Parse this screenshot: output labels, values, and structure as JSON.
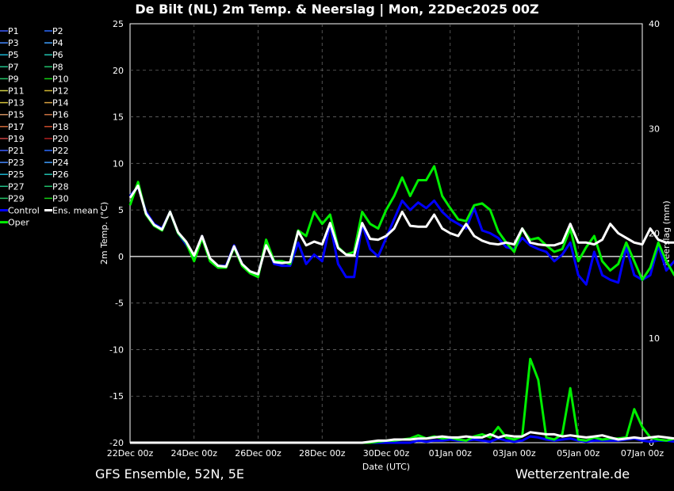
{
  "header": {
    "title": "De Bilt  (NL)  2m Temp. & Neerslag | Mon, 22Dec2025 00Z"
  },
  "footer": {
    "model": "GFS Ensemble, 52N, 5E",
    "site": "Wetterzentrale.de"
  },
  "chart_data": {
    "type": "line",
    "title": "De Bilt  (NL)  2m Temp. & Neerslag | Mon, 22Dec2025 00Z",
    "xlabel": "Date (UTC)",
    "ylabel_left": "2m Temp. (°C)",
    "ylabel_right": "Neerslag (mm)",
    "ylim_left": [
      -20,
      25
    ],
    "ylim_right": [
      0,
      40
    ],
    "xlim_hours": [
      0,
      384
    ],
    "step_hours": 6,
    "x_ticks": [
      "22Dec 00z",
      "24Dec 00z",
      "26Dec 00z",
      "28Dec 00z",
      "30Dec 00z",
      "01Jan 00z",
      "03Jan 00z",
      "05Jan 00z",
      "07Jan 00z"
    ],
    "y_ticks_left": [
      25,
      20,
      15,
      10,
      5,
      0,
      -5,
      -10,
      -15,
      -20
    ],
    "y_ticks_right": [
      40,
      30,
      20,
      10,
      0
    ],
    "grid": true,
    "legend_position": "left",
    "legend": [
      "P1",
      "P2",
      "P3",
      "P4",
      "P5",
      "P6",
      "P7",
      "P8",
      "P9",
      "P10",
      "P11",
      "P12",
      "P13",
      "P14",
      "P15",
      "P16",
      "P17",
      "P18",
      "P19",
      "P20",
      "P21",
      "P22",
      "P23",
      "P24",
      "P25",
      "P26",
      "P27",
      "P28",
      "P29",
      "P30",
      "Control",
      "Ens. mean",
      "Oper"
    ],
    "legend_colors": [
      "#3c5cff",
      "#2a6aff",
      "#4488ff",
      "#3f9fff",
      "#19b3d0",
      "#22c2b0",
      "#22c28a",
      "#1fbf6a",
      "#22c266",
      "#14d014",
      "#cfcf45",
      "#cfb530",
      "#d6c23a",
      "#d8a040",
      "#d09060",
      "#c87040",
      "#d06a3a",
      "#c84a2a",
      "#c84040",
      "#b02020",
      "#3c5cff",
      "#2a6aff",
      "#4488ff",
      "#3f9fff",
      "#19b3d0",
      "#22c2b0",
      "#22c28a",
      "#1fbf6a",
      "#22c266",
      "#14d014",
      "#0000ff",
      "#ffffff",
      "#00ee00"
    ],
    "temp_series": [
      {
        "name": "Oper",
        "color": "#00ee00",
        "width": 3,
        "values": [
          5.5,
          8,
          4.5,
          3.3,
          2.8,
          4.8,
          2.5,
          1.5,
          -0.5,
          2.0,
          -0.5,
          -1.2,
          -1.2,
          1.0,
          -1.0,
          -1.8,
          -2.2,
          1.8,
          -0.5,
          -0.5,
          -0.8,
          2.8,
          2.2,
          4.8,
          3.5,
          4.5,
          1.0,
          0.2,
          0.5,
          4.8,
          3.5,
          3.0,
          5.0,
          6.5,
          8.5,
          6.5,
          8.2,
          8.2,
          9.7,
          6.5,
          5.2,
          4.0,
          3.8,
          5.5,
          5.7,
          5.0,
          2.7,
          1.5,
          0.5,
          3.0,
          1.8,
          2.0,
          1.2,
          0.5,
          0.8,
          3.0,
          -0.5,
          1.0,
          2.2,
          -0.5,
          -1.5,
          -0.8,
          1.5,
          -0.5,
          -2.5,
          -1.2,
          1.5,
          -0.5,
          -2.0,
          -1.2,
          1.5,
          -1.8,
          -0.5
        ]
      },
      {
        "name": "Control",
        "color": "#0000ff",
        "width": 3,
        "values": [
          6.5,
          7.5,
          4.8,
          3.5,
          3.0,
          4.8,
          2.5,
          1.3,
          0.0,
          2.2,
          -0.3,
          -1.0,
          -1.0,
          1.2,
          -0.8,
          -1.6,
          -2.0,
          1.5,
          -0.8,
          -1.0,
          -1.0,
          1.5,
          -0.8,
          0.2,
          -0.5,
          3.5,
          -0.8,
          -2.2,
          -2.2,
          3.5,
          0.8,
          0.0,
          2.0,
          4.0,
          6.0,
          5.0,
          5.8,
          5.2,
          6.0,
          4.8,
          4.0,
          3.5,
          3.0,
          5.2,
          2.8,
          2.5,
          2.0,
          1.0,
          0.8,
          2.0,
          1.2,
          0.8,
          0.5,
          -0.5,
          0.2,
          1.5,
          -2.0,
          -3.0,
          0.5,
          -2.0,
          -2.5,
          -2.8,
          1.0,
          -2.0,
          -2.5,
          -2.0,
          1.2,
          -1.5,
          -0.5,
          -0.5,
          0.0,
          0.0,
          0.0
        ]
      },
      {
        "name": "Ens. mean",
        "color": "#ffffff",
        "width": 3,
        "values": [
          6.3,
          7.6,
          4.6,
          3.4,
          2.9,
          4.8,
          2.6,
          1.6,
          0.1,
          2.2,
          -0.2,
          -1.0,
          -1.1,
          1.1,
          -0.8,
          -1.6,
          -1.9,
          1.2,
          -0.6,
          -0.7,
          -0.6,
          2.7,
          1.2,
          1.6,
          1.3,
          3.6,
          0.9,
          0.2,
          0.1,
          3.6,
          1.9,
          1.8,
          2.2,
          3.0,
          4.8,
          3.3,
          3.2,
          3.2,
          4.5,
          3.0,
          2.5,
          2.2,
          3.5,
          2.2,
          1.7,
          1.4,
          1.3,
          1.5,
          1.3,
          3.0,
          1.5,
          1.3,
          1.2,
          1.2,
          1.5,
          3.5,
          1.5,
          1.5,
          1.3,
          1.8,
          3.5,
          2.5,
          2.0,
          1.5,
          1.3,
          3.0,
          1.8,
          1.5,
          1.5,
          1.2,
          3.7,
          2.7,
          2.4
        ]
      }
    ],
    "precip_series": [
      {
        "name": "Oper",
        "color": "#00ee00",
        "width": 3,
        "values": [
          0,
          0,
          0,
          0,
          0,
          0,
          0,
          0,
          0,
          0,
          0,
          0,
          0,
          0,
          0,
          0,
          0,
          0,
          0,
          0,
          0,
          0,
          0,
          0,
          0,
          0,
          0,
          0,
          0,
          0,
          0,
          0.1,
          0.2,
          0.2,
          0.3,
          0.4,
          0.7,
          0.4,
          0.6,
          0.4,
          0.5,
          0.3,
          0.2,
          0.6,
          0.8,
          0.5,
          1.5,
          0.5,
          0.3,
          0.6,
          8.0,
          6.0,
          0.5,
          0.3,
          0.8,
          5.2,
          0.3,
          0.2,
          0.5,
          0.3,
          0.4,
          0.4,
          0.5,
          3.2,
          1.5,
          0.5,
          0.3,
          0.2,
          0.4,
          0.3,
          0.3,
          0.2,
          0.2
        ]
      },
      {
        "name": "Control",
        "color": "#0000ff",
        "width": 3,
        "values": [
          0,
          0,
          0,
          0,
          0,
          0,
          0,
          0,
          0,
          0,
          0,
          0,
          0,
          0,
          0,
          0,
          0,
          0,
          0,
          0,
          0,
          0,
          0,
          0,
          0,
          0,
          0,
          0,
          0,
          0,
          0,
          0,
          0,
          0,
          0,
          0,
          0.2,
          0.1,
          0.2,
          0.2,
          0.3,
          0.2,
          0.2,
          0.3,
          0.2,
          0.1,
          0.4,
          0.2,
          0.1,
          0.2,
          0.6,
          0.5,
          0.3,
          0.2,
          0.3,
          0.4,
          0.2,
          0.1,
          0.2,
          0.2,
          0.2,
          0.2,
          0.3,
          0.4,
          0.2,
          0.1,
          0.2,
          0.2,
          0.1,
          0.2,
          0.2,
          0.1,
          0.1
        ]
      },
      {
        "name": "Ens. mean",
        "color": "#ffffff",
        "width": 3,
        "values": [
          0,
          0,
          0,
          0,
          0,
          0,
          0,
          0,
          0,
          0,
          0,
          0,
          0,
          0,
          0,
          0,
          0,
          0,
          0,
          0,
          0,
          0,
          0,
          0,
          0,
          0,
          0,
          0,
          0,
          0,
          0.1,
          0.2,
          0.2,
          0.3,
          0.3,
          0.3,
          0.4,
          0.4,
          0.5,
          0.6,
          0.5,
          0.5,
          0.6,
          0.5,
          0.5,
          0.8,
          0.5,
          0.7,
          0.6,
          0.6,
          1.0,
          0.9,
          0.8,
          0.8,
          0.6,
          0.7,
          0.6,
          0.5,
          0.6,
          0.7,
          0.5,
          0.3,
          0.4,
          0.5,
          0.4,
          0.5,
          0.6,
          0.5,
          0.4,
          0.5,
          0.5,
          0.5,
          0.4
        ]
      }
    ]
  }
}
